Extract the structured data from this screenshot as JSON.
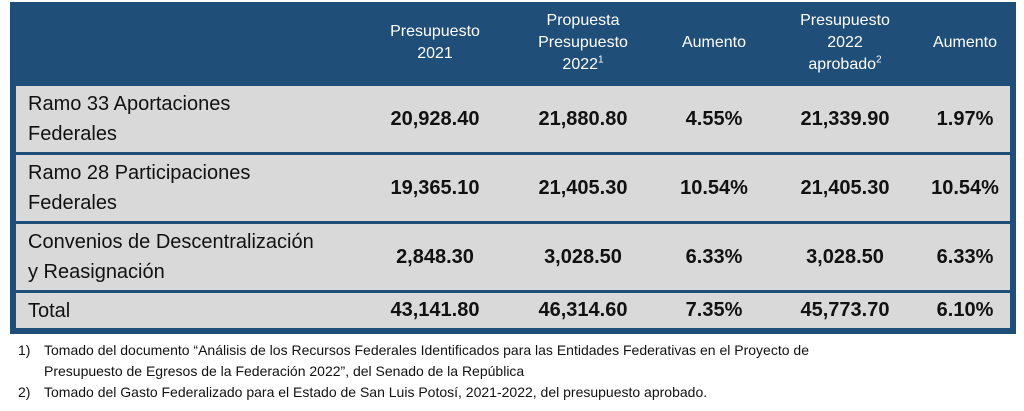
{
  "header": {
    "col1": [
      "Presupuesto",
      "2021"
    ],
    "col2": [
      "Propuesta",
      "Presupuesto",
      "2022"
    ],
    "col2_sup": "1",
    "col3": "Aumento",
    "col4": [
      "Presupuesto",
      "2022",
      "aprobado"
    ],
    "col4_sup": "2",
    "col5": "Aumento"
  },
  "rows": [
    {
      "label": [
        "Ramo 33 Aportaciones",
        "Federales"
      ],
      "v2021": "20,928.40",
      "propuesta": "21,880.80",
      "aumento1": "4.55%",
      "aprobado": "21,339.90",
      "aumento2": "1.97%"
    },
    {
      "label": [
        "Ramo 28 Participaciones",
        "Federales"
      ],
      "v2021": "19,365.10",
      "propuesta": "21,405.30",
      "aumento1": "10.54%",
      "aprobado": "21,405.30",
      "aumento2": "10.54%"
    },
    {
      "label": [
        "Convenios de Descentralización",
        "y Reasignación"
      ],
      "v2021": "2,848.30",
      "propuesta": "3,028.50",
      "aumento1": "6.33%",
      "aprobado": "3,028.50",
      "aumento2": "6.33%"
    },
    {
      "label": [
        "Total"
      ],
      "v2021": "43,141.80",
      "propuesta": "46,314.60",
      "aumento1": "7.35%",
      "aprobado": "45,773.70",
      "aumento2": "6.10%"
    }
  ],
  "footnotes": [
    {
      "num": "1)",
      "text": "Tomado del documento “Análisis de los Recursos Federales Identificados para las Entidades Federativas en el Proyecto de",
      "text2": "Presupuesto de Egresos de la Federación 2022”, del Senado de la República"
    },
    {
      "num": "2)",
      "text": "Tomado del Gasto Federalizado para el Estado de San Luis Potosí, 2021-2022, del presupuesto aprobado.",
      "text2": ""
    }
  ]
}
